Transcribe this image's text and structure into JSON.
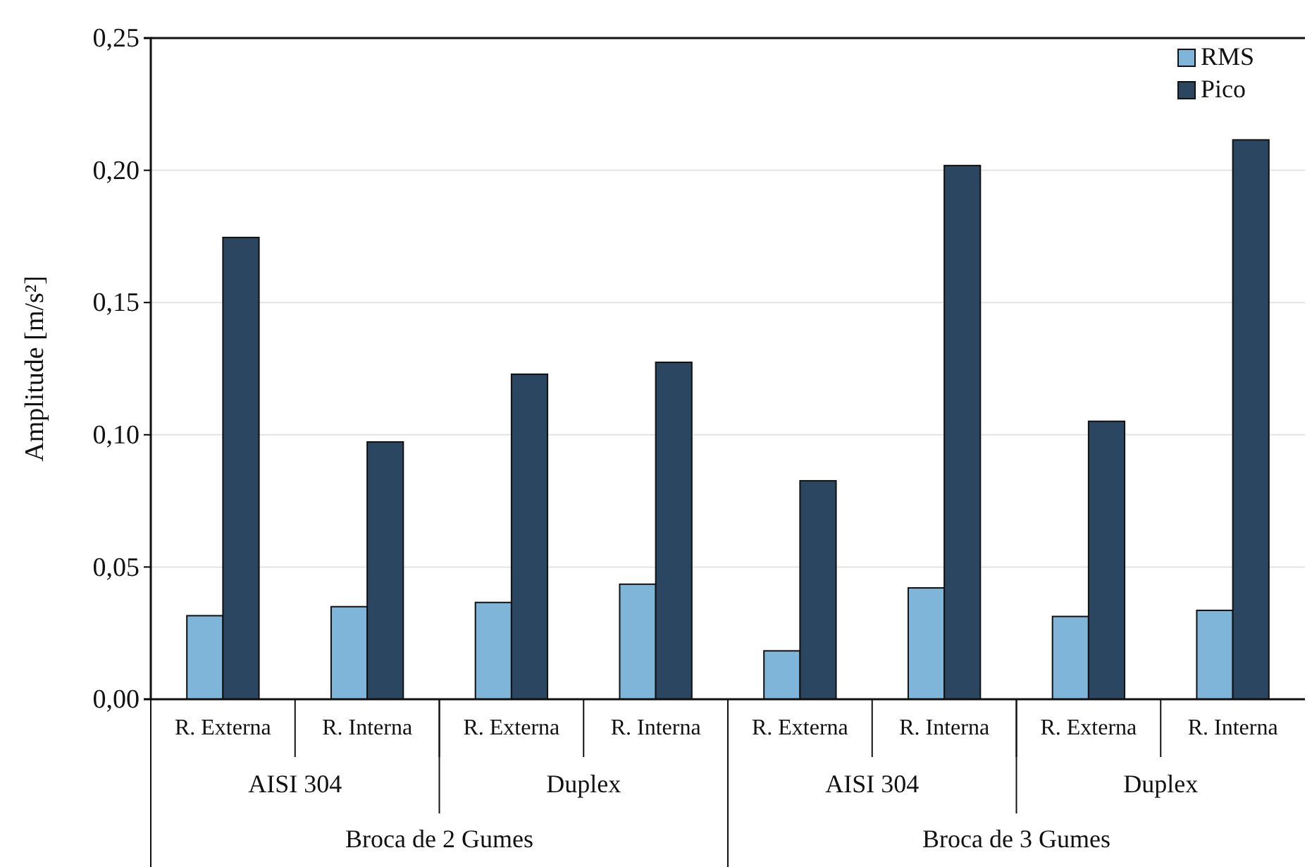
{
  "chart_data": {
    "type": "bar",
    "ylabel": "Amplitude [m/s²]",
    "categories": [
      "R. Externa",
      "R. Interna",
      "R. Externa",
      "R. Interna",
      "R. Externa",
      "R. Interna",
      "R. Externa",
      "R. Interna"
    ],
    "series": [
      {
        "name": "RMS",
        "color": "#7fb5d8",
        "values": [
          0.0316,
          0.035,
          0.0366,
          0.0435,
          0.0183,
          0.0421,
          0.0313,
          0.0336
        ]
      },
      {
        "name": "Pico",
        "color": "#2b4660",
        "values": [
          0.1746,
          0.0973,
          0.1229,
          0.1274,
          0.0826,
          0.2018,
          0.1051,
          0.2115
        ]
      }
    ],
    "ylim": [
      0,
      0.25
    ],
    "yticks": [
      {
        "value": 0,
        "label": "0,00"
      },
      {
        "value": 0.05,
        "label": "0,05"
      },
      {
        "value": 0.1,
        "label": "0,10"
      },
      {
        "value": 0.15,
        "label": "0,15"
      },
      {
        "value": 0.2,
        "label": "0,20"
      },
      {
        "value": 0.25,
        "label": "0,25"
      }
    ],
    "grid": "y",
    "legend": "top right",
    "annotations": [
      "AISI 304",
      "Duplex",
      "AISI 304",
      "Duplex",
      "Broca de 2 Gumes",
      "Broca de 3 Gumes"
    ]
  }
}
